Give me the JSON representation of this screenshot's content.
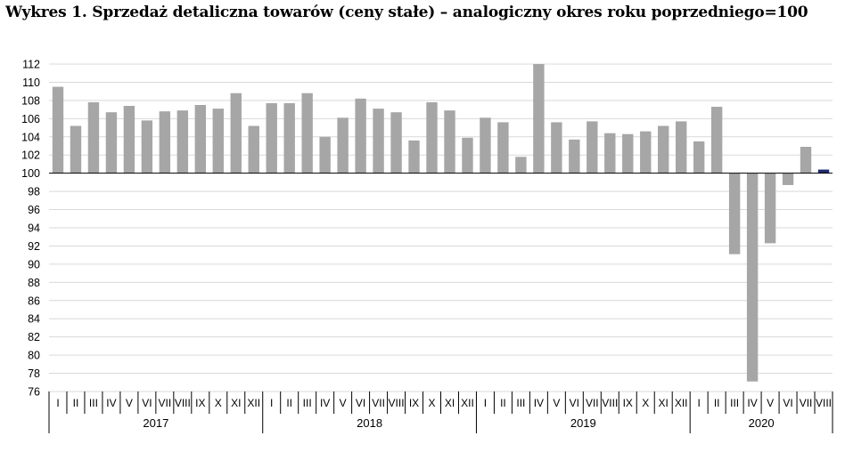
{
  "title": "Wykres 1. Sprzedaż detaliczna towarów (ceny stałe) – analogiczny okres roku poprzedniego=100",
  "chart_data": {
    "type": "bar",
    "title": "Wykres 1. Sprzedaż detaliczna towarów (ceny stałe) – analogiczny okres roku poprzedniego=100",
    "baseline": 100,
    "ylim": [
      76,
      112
    ],
    "yticks": [
      76,
      78,
      80,
      82,
      84,
      86,
      88,
      90,
      92,
      94,
      96,
      98,
      100,
      102,
      104,
      106,
      108,
      110,
      112
    ],
    "grid": true,
    "years": [
      {
        "label": "2017",
        "months": [
          "I",
          "II",
          "III",
          "IV",
          "V",
          "VI",
          "VII",
          "VIII",
          "IX",
          "X",
          "XI",
          "XII"
        ]
      },
      {
        "label": "2018",
        "months": [
          "I",
          "II",
          "III",
          "IV",
          "V",
          "VI",
          "VII",
          "VIII",
          "IX",
          "X",
          "XI",
          "XII"
        ]
      },
      {
        "label": "2019",
        "months": [
          "I",
          "II",
          "III",
          "IV",
          "V",
          "VI",
          "VII",
          "VIII",
          "IX",
          "X",
          "XI",
          "XII"
        ]
      },
      {
        "label": "2020",
        "months": [
          "I",
          "II",
          "III",
          "IV",
          "V",
          "VI",
          "VII",
          "VIII"
        ]
      }
    ],
    "values": [
      109.5,
      105.2,
      107.8,
      106.7,
      107.4,
      105.8,
      106.8,
      106.9,
      107.5,
      107.1,
      108.8,
      105.2,
      107.7,
      107.7,
      108.8,
      104.0,
      106.1,
      108.2,
      107.1,
      106.7,
      103.6,
      107.8,
      106.9,
      103.9,
      106.1,
      105.6,
      101.8,
      112.0,
      105.6,
      103.7,
      105.7,
      104.4,
      104.3,
      104.6,
      105.2,
      105.7,
      103.5,
      107.3,
      91.1,
      77.1,
      92.3,
      98.7,
      102.9,
      100.4
    ],
    "colors": {
      "bar": "#a6a6a6",
      "highlight": "#1f2a6b",
      "grid": "#d9d9d9",
      "axis": "#000000"
    }
  }
}
